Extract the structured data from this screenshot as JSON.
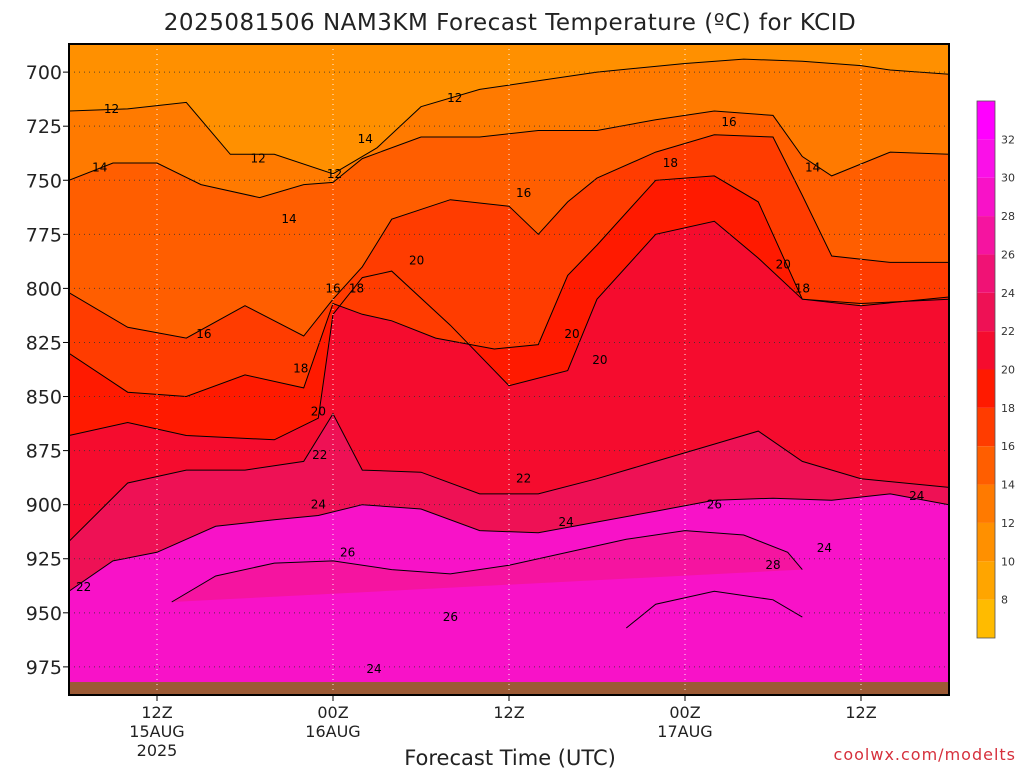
{
  "title": "2025081506 NAM3KM Forecast Temperature (ºC) for KCID",
  "credit": "coolwx.com/modelts",
  "chart_data": {
    "type": "heatmap",
    "title": "2025081506 NAM3KM Forecast Temperature (ºC) for KCID",
    "xlabel": "Forecast Time (UTC)",
    "ylabel": "",
    "x_units": "hours after 2025-08-15 06Z",
    "xlim": [
      0,
      60
    ],
    "y_units": "hPa",
    "ylim": [
      988,
      687
    ],
    "y_ticks": [
      700,
      725,
      750,
      775,
      800,
      825,
      850,
      875,
      900,
      925,
      950,
      975
    ],
    "x_ticks": [
      {
        "x": 6,
        "lines": [
          "12Z",
          "15AUG",
          "2025"
        ]
      },
      {
        "x": 18,
        "lines": [
          "00Z",
          "16AUG"
        ]
      },
      {
        "x": 30,
        "lines": [
          "12Z"
        ]
      },
      {
        "x": 42,
        "lines": [
          "00Z",
          "17AUG"
        ]
      },
      {
        "x": 54,
        "lines": [
          "12Z"
        ]
      }
    ],
    "grid": true,
    "ground_color": "#9c5a35",
    "colorbar": {
      "ticks": [
        8,
        10,
        12,
        14,
        16,
        18,
        20,
        22,
        24,
        26,
        28,
        30,
        32
      ],
      "bins": [
        {
          "lo": 6,
          "hi": 8,
          "color": "#ffbb00"
        },
        {
          "lo": 8,
          "hi": 10,
          "color": "#ffa500"
        },
        {
          "lo": 10,
          "hi": 12,
          "color": "#ff9000"
        },
        {
          "lo": 12,
          "hi": 14,
          "color": "#ff7a00"
        },
        {
          "lo": 14,
          "hi": 16,
          "color": "#ff5e00"
        },
        {
          "lo": 16,
          "hi": 18,
          "color": "#ff3c00"
        },
        {
          "lo": 18,
          "hi": 20,
          "color": "#ff1a00"
        },
        {
          "lo": 20,
          "hi": 22,
          "color": "#f50c2e"
        },
        {
          "lo": 22,
          "hi": 24,
          "color": "#ee1155"
        },
        {
          "lo": 24,
          "hi": 26,
          "color": "#f01275"
        },
        {
          "lo": 26,
          "hi": 28,
          "color": "#f514a0"
        },
        {
          "lo": 28,
          "hi": 30,
          "color": "#f812c8"
        },
        {
          "lo": 30,
          "hi": 32,
          "color": "#fa10e8"
        },
        {
          "lo": 32,
          "hi": 34,
          "color": "#ff00ff"
        }
      ]
    },
    "isotherms": [
      {
        "value": 12,
        "points": [
          [
            0,
            718
          ],
          [
            4,
            717
          ],
          [
            8,
            714
          ],
          [
            11,
            738
          ],
          [
            14,
            738
          ],
          [
            18,
            747
          ],
          [
            21,
            735
          ],
          [
            24,
            716
          ],
          [
            28,
            708
          ],
          [
            32,
            704
          ],
          [
            36,
            700
          ],
          [
            42,
            696
          ],
          [
            46,
            694
          ],
          [
            50,
            695
          ],
          [
            54,
            697
          ],
          [
            56,
            699
          ],
          [
            60,
            701
          ]
        ]
      },
      {
        "value": 14,
        "points": [
          [
            0,
            750
          ],
          [
            3,
            742
          ],
          [
            6,
            742
          ],
          [
            9,
            752
          ],
          [
            13,
            758
          ],
          [
            16,
            752
          ],
          [
            18,
            751
          ],
          [
            20,
            740
          ],
          [
            24,
            730
          ],
          [
            28,
            730
          ],
          [
            32,
            727
          ],
          [
            36,
            727
          ],
          [
            40,
            722
          ],
          [
            44,
            718
          ],
          [
            48,
            720
          ],
          [
            50,
            739
          ],
          [
            52,
            748
          ],
          [
            56,
            737
          ],
          [
            60,
            738
          ]
        ]
      },
      {
        "value": 16,
        "points": [
          [
            0,
            802
          ],
          [
            4,
            818
          ],
          [
            8,
            823
          ],
          [
            12,
            808
          ],
          [
            16,
            822
          ],
          [
            18,
            805
          ],
          [
            20,
            790
          ],
          [
            22,
            768
          ],
          [
            26,
            759
          ],
          [
            30,
            762
          ],
          [
            32,
            775
          ],
          [
            34,
            760
          ],
          [
            36,
            749
          ],
          [
            40,
            737
          ],
          [
            44,
            729
          ],
          [
            48,
            730
          ],
          [
            50,
            757
          ],
          [
            52,
            785
          ],
          [
            56,
            788
          ],
          [
            60,
            788
          ]
        ]
      },
      {
        "value": 18,
        "points": [
          [
            0,
            830
          ],
          [
            4,
            848
          ],
          [
            8,
            850
          ],
          [
            12,
            840
          ],
          [
            16,
            846
          ],
          [
            18,
            807
          ],
          [
            20,
            812
          ],
          [
            22,
            815
          ],
          [
            25,
            823
          ],
          [
            29,
            828
          ],
          [
            32,
            826
          ],
          [
            34,
            794
          ],
          [
            36,
            780
          ],
          [
            40,
            750
          ],
          [
            44,
            748
          ],
          [
            47,
            760
          ],
          [
            50,
            805
          ],
          [
            54,
            808
          ],
          [
            60,
            804
          ]
        ]
      },
      {
        "value": 20,
        "points": [
          [
            0,
            868
          ],
          [
            4,
            862
          ],
          [
            8,
            868
          ],
          [
            14,
            870
          ],
          [
            17,
            860
          ],
          [
            18,
            812
          ],
          [
            20,
            795
          ],
          [
            22,
            792
          ],
          [
            26,
            817
          ],
          [
            30,
            845
          ],
          [
            34,
            838
          ],
          [
            36,
            805
          ],
          [
            40,
            775
          ],
          [
            44,
            769
          ],
          [
            47,
            786
          ],
          [
            50,
            805
          ],
          [
            54,
            807
          ],
          [
            60,
            805
          ]
        ]
      },
      {
        "value": 22,
        "points": [
          [
            0,
            917
          ],
          [
            4,
            890
          ],
          [
            8,
            884
          ],
          [
            12,
            884
          ],
          [
            16,
            880
          ],
          [
            18,
            858
          ],
          [
            20,
            884
          ],
          [
            24,
            885
          ],
          [
            28,
            895
          ],
          [
            32,
            895
          ],
          [
            36,
            888
          ],
          [
            40,
            880
          ],
          [
            44,
            872
          ],
          [
            47,
            866
          ],
          [
            50,
            880
          ],
          [
            54,
            888
          ],
          [
            60,
            892
          ]
        ]
      },
      {
        "value": 24,
        "points": [
          [
            0,
            940
          ],
          [
            3,
            926
          ],
          [
            6,
            922
          ],
          [
            10,
            910
          ],
          [
            14,
            907
          ],
          [
            17,
            905
          ],
          [
            20,
            900
          ],
          [
            24,
            902
          ],
          [
            28,
            912
          ],
          [
            32,
            913
          ],
          [
            36,
            908
          ],
          [
            40,
            903
          ],
          [
            44,
            898
          ],
          [
            48,
            897
          ],
          [
            52,
            898
          ],
          [
            56,
            895
          ],
          [
            60,
            900
          ]
        ]
      },
      {
        "value": 26,
        "points": [
          [
            7,
            945
          ],
          [
            10,
            933
          ],
          [
            14,
            927
          ],
          [
            18,
            926
          ],
          [
            22,
            930
          ],
          [
            26,
            932
          ],
          [
            30,
            928
          ],
          [
            34,
            922
          ],
          [
            38,
            916
          ],
          [
            42,
            912
          ],
          [
            46,
            914
          ],
          [
            49,
            922
          ],
          [
            50,
            930
          ]
        ]
      },
      {
        "value": 28,
        "points": [
          [
            38,
            957
          ],
          [
            40,
            946
          ],
          [
            44,
            940
          ],
          [
            48,
            944
          ],
          [
            50,
            952
          ]
        ]
      }
    ],
    "contour_labels": [
      {
        "text": "12",
        "x": 2.9,
        "y": 717
      },
      {
        "text": "12",
        "x": 12.9,
        "y": 740
      },
      {
        "text": "12",
        "x": 18.1,
        "y": 747
      },
      {
        "text": "12",
        "x": 26.3,
        "y": 712
      },
      {
        "text": "14",
        "x": 2.1,
        "y": 744
      },
      {
        "text": "14",
        "x": 15.0,
        "y": 768
      },
      {
        "text": "14",
        "x": 20.2,
        "y": 731
      },
      {
        "text": "14",
        "x": 50.7,
        "y": 744
      },
      {
        "text": "16",
        "x": 9.2,
        "y": 821
      },
      {
        "text": "16",
        "x": 18.0,
        "y": 800
      },
      {
        "text": "16",
        "x": 31.0,
        "y": 756
      },
      {
        "text": "16",
        "x": 45.0,
        "y": 723
      },
      {
        "text": "18",
        "x": 15.8,
        "y": 837
      },
      {
        "text": "18",
        "x": 19.6,
        "y": 800
      },
      {
        "text": "18",
        "x": 41.0,
        "y": 742
      },
      {
        "text": "18",
        "x": 50.0,
        "y": 800
      },
      {
        "text": "20",
        "x": 17.0,
        "y": 857
      },
      {
        "text": "20",
        "x": 23.7,
        "y": 787
      },
      {
        "text": "20",
        "x": 34.3,
        "y": 821
      },
      {
        "text": "20",
        "x": 36.2,
        "y": 833
      },
      {
        "text": "20",
        "x": 48.7,
        "y": 789
      },
      {
        "text": "22",
        "x": 17.1,
        "y": 877
      },
      {
        "text": "22",
        "x": 31.0,
        "y": 888
      },
      {
        "text": "22",
        "x": 1.0,
        "y": 938
      },
      {
        "text": "24",
        "x": 17.0,
        "y": 900
      },
      {
        "text": "24",
        "x": 33.9,
        "y": 908
      },
      {
        "text": "24",
        "x": 51.5,
        "y": 920
      },
      {
        "text": "24",
        "x": 57.8,
        "y": 896
      },
      {
        "text": "24",
        "x": 20.8,
        "y": 976
      },
      {
        "text": "26",
        "x": 19.0,
        "y": 922
      },
      {
        "text": "26",
        "x": 26.0,
        "y": 952
      },
      {
        "text": "26",
        "x": 44.0,
        "y": 900
      },
      {
        "text": "28",
        "x": 48.0,
        "y": 928
      }
    ]
  }
}
